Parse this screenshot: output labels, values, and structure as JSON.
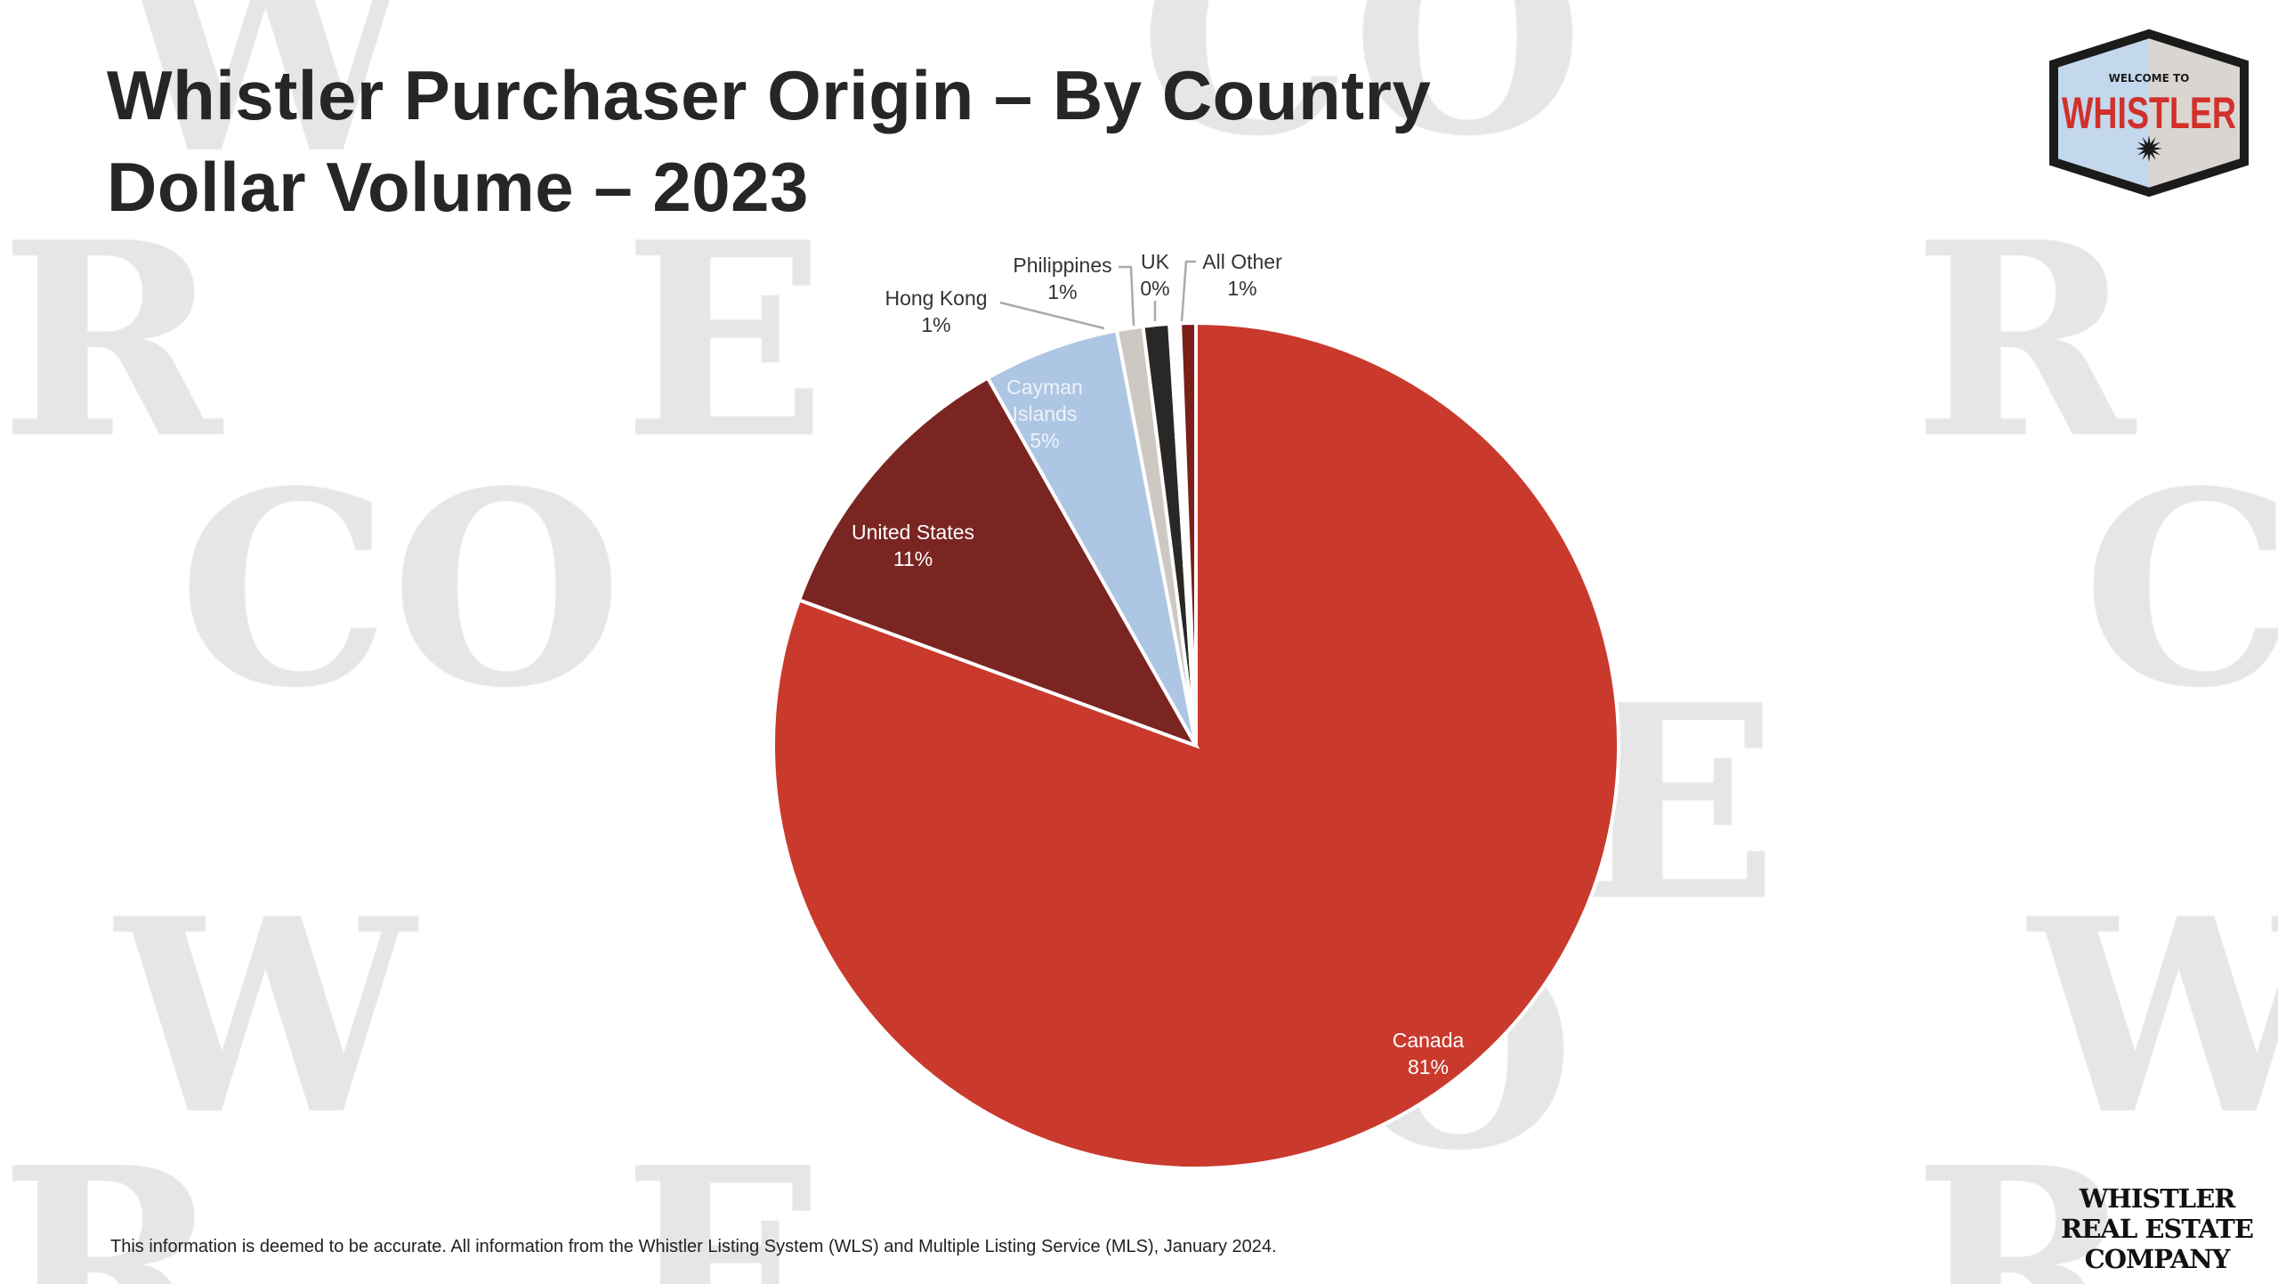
{
  "title_line1": "Whistler Purchaser Origin – By Country",
  "title_line2": "Dollar Volume – 2023",
  "footnote": "This information is deemed to be accurate. All information from the Whistler Listing System (WLS) and Multiple Listing Service (MLS), January 2024.",
  "logo_badge": {
    "small": "WELCOME TO",
    "big": "WHISTLER"
  },
  "company_logo": [
    "WHISTLER",
    "REAL ESTATE",
    "COMPANY"
  ],
  "watermark": [
    "W",
    "R",
    "E",
    "CO"
  ],
  "chart_data": {
    "type": "pie",
    "title": "",
    "start": "12 o'clock, clockwise",
    "slices": [
      {
        "name": "Canada",
        "label": "81%",
        "value": 80.6,
        "color": "#c93a2d"
      },
      {
        "name": "United States",
        "label": "11%",
        "value": 11.2,
        "color": "#7a2522"
      },
      {
        "name": "Cayman Islands",
        "label": "5%",
        "value": 5.2,
        "color": "#adc6e3"
      },
      {
        "name": "Hong Kong",
        "label": "1%",
        "value": 1.0,
        "color": "#cdc8c1"
      },
      {
        "name": "Philippines",
        "label": "1%",
        "value": 1.0,
        "color": "#2a2826"
      },
      {
        "name": "UK",
        "label": "0%",
        "value": 0.4,
        "color": "#ffffff"
      },
      {
        "name": "All Other",
        "label": "1%",
        "value": 0.6,
        "color": "#7a1f1a"
      }
    ]
  }
}
